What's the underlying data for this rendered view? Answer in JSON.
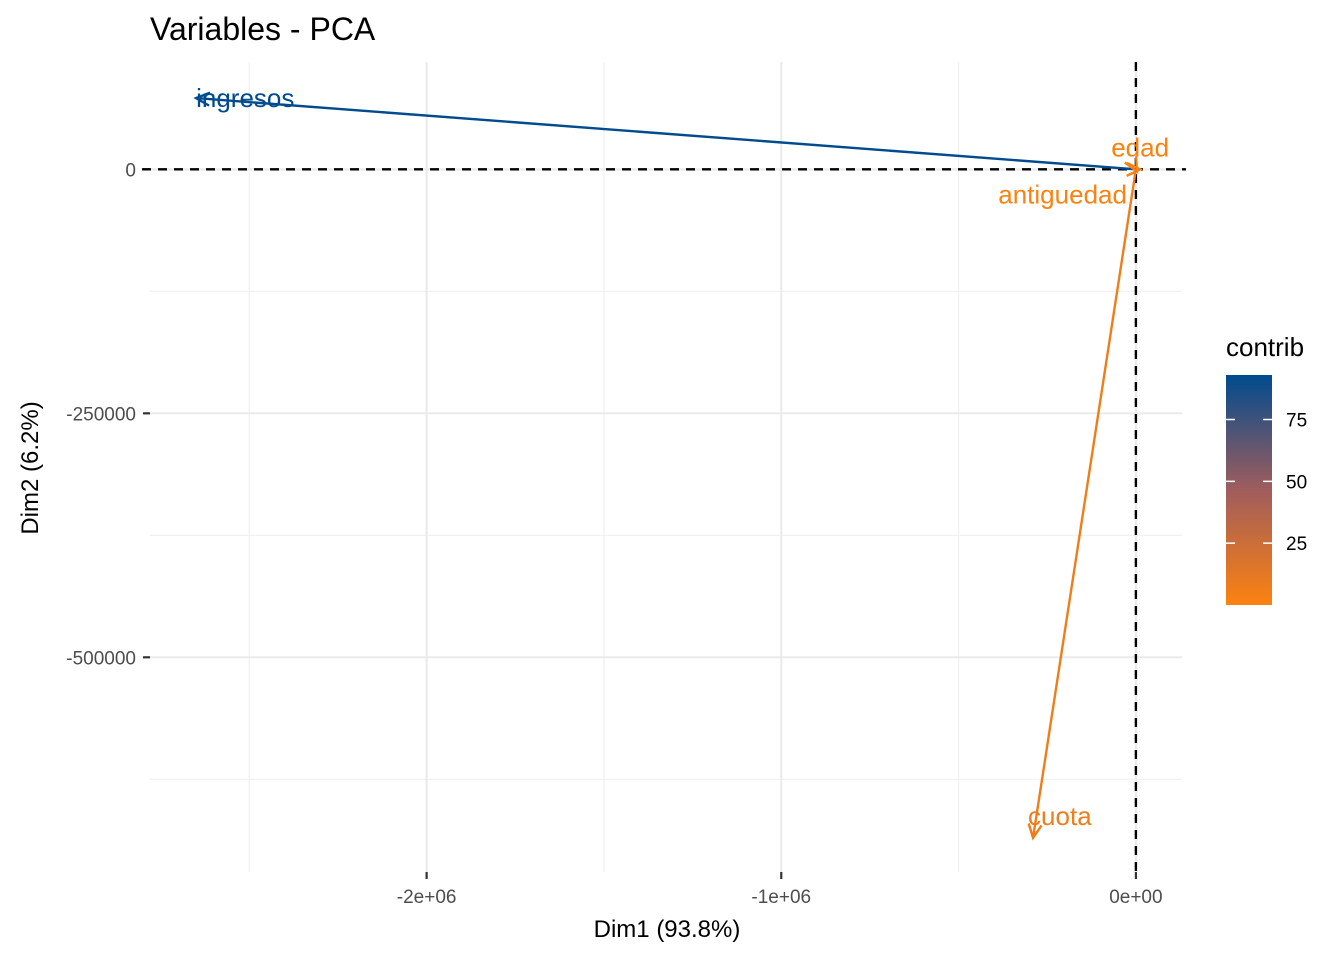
{
  "chart_data": {
    "type": "scatter",
    "title": "Variables - PCA",
    "xlabel": "Dim1 (93.8%)",
    "ylabel": "Dim2 (6.2%)",
    "xlim": [
      -2780000,
      130000
    ],
    "ylim": [
      -720000,
      110000
    ],
    "x_ticks": [
      -2000000,
      -1000000,
      0
    ],
    "x_tick_labels": [
      "-2e+06",
      "-1e+06",
      "0e+00"
    ],
    "y_ticks": [
      -500000,
      -250000,
      0
    ],
    "y_tick_labels": [
      "-500000",
      "-250000",
      "0"
    ],
    "grid": true,
    "reference_lines": {
      "x": 0,
      "y": 0
    },
    "variables": [
      {
        "name": "ingresos",
        "x": -2650000,
        "y": 73000,
        "contrib": 93
      },
      {
        "name": "edad",
        "x": 12000,
        "y": 0,
        "contrib": 0.1
      },
      {
        "name": "antiguedad",
        "x": 3000,
        "y": -2000,
        "contrib": 0.1
      },
      {
        "name": "cuota",
        "x": -290000,
        "y": -685000,
        "contrib": 6.9
      }
    ],
    "legend": {
      "title": "contrib",
      "placement": "right",
      "min": 0,
      "max": 93,
      "ticks": [
        25,
        50,
        75
      ],
      "colors": {
        "low": "#FC8210",
        "mid": "#A05D5D",
        "high": "#004B8E"
      }
    }
  }
}
